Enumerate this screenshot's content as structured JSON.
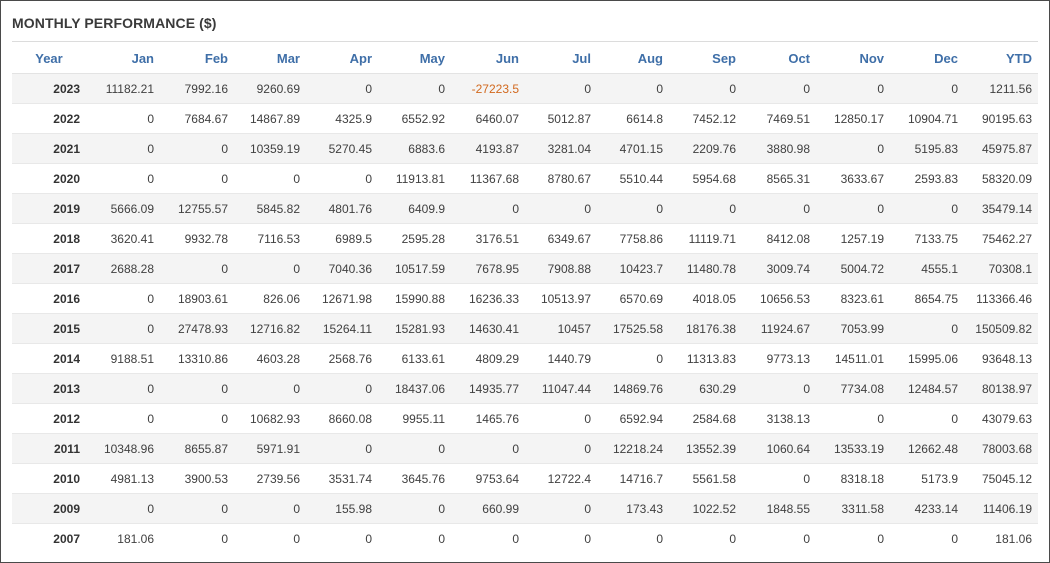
{
  "title": "MONTHLY PERFORMANCE ($)",
  "colors": {
    "header": "#3f6fa8",
    "negative": "#d2691e",
    "stripe": "#f4f4f4"
  },
  "columns": [
    "Year",
    "Jan",
    "Feb",
    "Mar",
    "Apr",
    "May",
    "Jun",
    "Jul",
    "Aug",
    "Sep",
    "Oct",
    "Nov",
    "Dec",
    "YTD"
  ],
  "rows": [
    [
      "2023",
      "11182.21",
      "7992.16",
      "9260.69",
      "0",
      "0",
      "-27223.5",
      "0",
      "0",
      "0",
      "0",
      "0",
      "0",
      "1211.56"
    ],
    [
      "2022",
      "0",
      "7684.67",
      "14867.89",
      "4325.9",
      "6552.92",
      "6460.07",
      "5012.87",
      "6614.8",
      "7452.12",
      "7469.51",
      "12850.17",
      "10904.71",
      "90195.63"
    ],
    [
      "2021",
      "0",
      "0",
      "10359.19",
      "5270.45",
      "6883.6",
      "4193.87",
      "3281.04",
      "4701.15",
      "2209.76",
      "3880.98",
      "0",
      "5195.83",
      "45975.87"
    ],
    [
      "2020",
      "0",
      "0",
      "0",
      "0",
      "11913.81",
      "11367.68",
      "8780.67",
      "5510.44",
      "5954.68",
      "8565.31",
      "3633.67",
      "2593.83",
      "58320.09"
    ],
    [
      "2019",
      "5666.09",
      "12755.57",
      "5845.82",
      "4801.76",
      "6409.9",
      "0",
      "0",
      "0",
      "0",
      "0",
      "0",
      "0",
      "35479.14"
    ],
    [
      "2018",
      "3620.41",
      "9932.78",
      "7116.53",
      "6989.5",
      "2595.28",
      "3176.51",
      "6349.67",
      "7758.86",
      "11119.71",
      "8412.08",
      "1257.19",
      "7133.75",
      "75462.27"
    ],
    [
      "2017",
      "2688.28",
      "0",
      "0",
      "7040.36",
      "10517.59",
      "7678.95",
      "7908.88",
      "10423.7",
      "11480.78",
      "3009.74",
      "5004.72",
      "4555.1",
      "70308.1"
    ],
    [
      "2016",
      "0",
      "18903.61",
      "826.06",
      "12671.98",
      "15990.88",
      "16236.33",
      "10513.97",
      "6570.69",
      "4018.05",
      "10656.53",
      "8323.61",
      "8654.75",
      "113366.46"
    ],
    [
      "2015",
      "0",
      "27478.93",
      "12716.82",
      "15264.11",
      "15281.93",
      "14630.41",
      "10457",
      "17525.58",
      "18176.38",
      "11924.67",
      "7053.99",
      "0",
      "150509.82"
    ],
    [
      "2014",
      "9188.51",
      "13310.86",
      "4603.28",
      "2568.76",
      "6133.61",
      "4809.29",
      "1440.79",
      "0",
      "11313.83",
      "9773.13",
      "14511.01",
      "15995.06",
      "93648.13"
    ],
    [
      "2013",
      "0",
      "0",
      "0",
      "0",
      "18437.06",
      "14935.77",
      "11047.44",
      "14869.76",
      "630.29",
      "0",
      "7734.08",
      "12484.57",
      "80138.97"
    ],
    [
      "2012",
      "0",
      "0",
      "10682.93",
      "8660.08",
      "9955.11",
      "1465.76",
      "0",
      "6592.94",
      "2584.68",
      "3138.13",
      "0",
      "0",
      "43079.63"
    ],
    [
      "2011",
      "10348.96",
      "8655.87",
      "5971.91",
      "0",
      "0",
      "0",
      "0",
      "12218.24",
      "13552.39",
      "1060.64",
      "13533.19",
      "12662.48",
      "78003.68"
    ],
    [
      "2010",
      "4981.13",
      "3900.53",
      "2739.56",
      "3531.74",
      "3645.76",
      "9753.64",
      "12722.4",
      "14716.7",
      "5561.58",
      "0",
      "8318.18",
      "5173.9",
      "75045.12"
    ],
    [
      "2009",
      "0",
      "0",
      "0",
      "155.98",
      "0",
      "660.99",
      "0",
      "173.43",
      "1022.52",
      "1848.55",
      "3311.58",
      "4233.14",
      "11406.19"
    ],
    [
      "2007",
      "181.06",
      "0",
      "0",
      "0",
      "0",
      "0",
      "0",
      "0",
      "0",
      "0",
      "0",
      "0",
      "181.06"
    ]
  ]
}
